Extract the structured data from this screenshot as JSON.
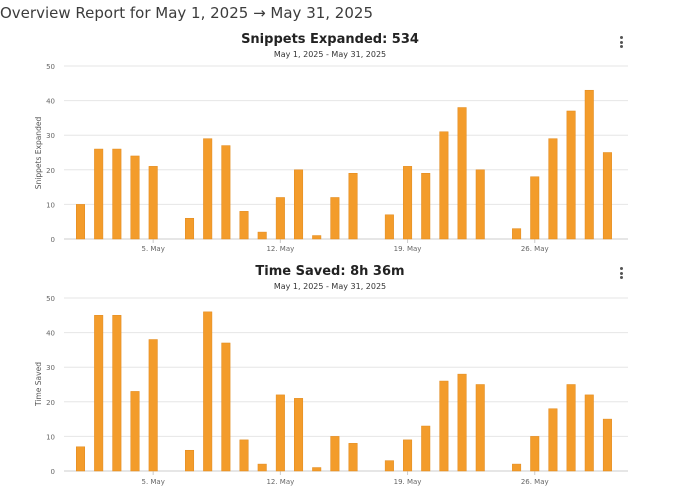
{
  "page": {
    "title": "Overview Report for May 1, 2025 → May 31, 2025"
  },
  "charts": [
    {
      "title": "Snippets Expanded: 534",
      "subtitle": "May 1, 2025 - May 31, 2025",
      "menu_icon": "vertical-dots-icon"
    },
    {
      "title": "Time Saved: 8h 36m",
      "subtitle": "May 1, 2025 - May 31, 2025",
      "menu_icon": "vertical-dots-icon"
    }
  ],
  "colors": {
    "bar": "#f39c2b",
    "grid": "#e6e6e6",
    "axis": "#cccccc",
    "tick": "#666666"
  },
  "chart_data": [
    {
      "type": "bar",
      "title": "Snippets Expanded: 534",
      "subtitle": "May 1, 2025 - May 31, 2025",
      "xlabel": "",
      "ylabel": "Snippets Expanded",
      "ylim": [
        0,
        50
      ],
      "yticks": [
        0,
        10,
        20,
        30,
        40,
        50
      ],
      "x": [
        1,
        2,
        3,
        4,
        5,
        6,
        7,
        8,
        9,
        10,
        11,
        12,
        13,
        14,
        15,
        16,
        17,
        18,
        19,
        20,
        21,
        22,
        23,
        24,
        25,
        26,
        27,
        28,
        29,
        30,
        31
      ],
      "xticks": [
        {
          "day": 5,
          "label": "5. May"
        },
        {
          "day": 12,
          "label": "12. May"
        },
        {
          "day": 19,
          "label": "19. May"
        },
        {
          "day": 26,
          "label": "26. May"
        }
      ],
      "values": [
        10,
        26,
        26,
        24,
        21,
        0,
        6,
        29,
        27,
        8,
        2,
        12,
        20,
        1,
        12,
        19,
        0,
        7,
        21,
        19,
        31,
        38,
        20,
        0,
        3,
        18,
        29,
        37,
        43,
        25,
        0
      ],
      "grid": true,
      "legend": "none"
    },
    {
      "type": "bar",
      "title": "Time Saved: 8h 36m",
      "subtitle": "May 1, 2025 - May 31, 2025",
      "xlabel": "",
      "ylabel": "Time Saved",
      "ylim": [
        0,
        50
      ],
      "yticks": [
        0,
        10,
        20,
        30,
        40,
        50
      ],
      "x": [
        1,
        2,
        3,
        4,
        5,
        6,
        7,
        8,
        9,
        10,
        11,
        12,
        13,
        14,
        15,
        16,
        17,
        18,
        19,
        20,
        21,
        22,
        23,
        24,
        25,
        26,
        27,
        28,
        29,
        30,
        31
      ],
      "xticks": [
        {
          "day": 5,
          "label": "5. May"
        },
        {
          "day": 12,
          "label": "12. May"
        },
        {
          "day": 19,
          "label": "19. May"
        },
        {
          "day": 26,
          "label": "26. May"
        }
      ],
      "values": [
        7,
        45,
        45,
        23,
        38,
        0,
        6,
        46,
        37,
        9,
        2,
        22,
        21,
        1,
        10,
        8,
        0,
        3,
        9,
        13,
        26,
        28,
        25,
        0,
        2,
        10,
        18,
        25,
        22,
        15,
        0
      ],
      "grid": true,
      "legend": "none"
    }
  ]
}
